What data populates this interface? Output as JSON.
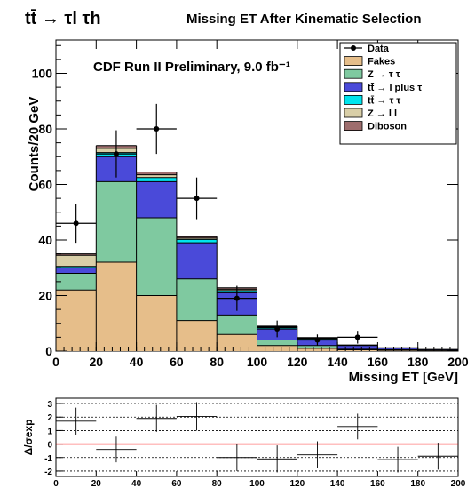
{
  "header": {
    "process": "tt̄ → τl τh",
    "title": "Missing ET After Kinematic Selection",
    "preliminary": "CDF Run II Preliminary, 9.0 fb⁻¹"
  },
  "chart_data": [
    {
      "type": "stacked_histogram",
      "xlabel": "Missing ET [GeV]",
      "ylabel": "Counts/20 GeV",
      "xlim": [
        0,
        200
      ],
      "ylim": [
        0,
        112
      ],
      "bin_width": 20,
      "x_ticks": [
        0,
        20,
        40,
        60,
        80,
        100,
        120,
        140,
        160,
        180,
        200
      ],
      "y_ticks": [
        0,
        20,
        40,
        60,
        80,
        100
      ],
      "bin_centers": [
        10,
        30,
        50,
        70,
        90,
        110,
        130,
        150,
        170,
        190
      ],
      "series": [
        {
          "name": "Fakes",
          "color": "#e6be8a",
          "values": [
            22,
            32,
            20,
            11,
            6,
            2,
            1,
            0.5,
            0.3,
            0.2
          ]
        },
        {
          "name": "Z → τ τ",
          "color": "#7fc9a0",
          "values": [
            6,
            29,
            28,
            15,
            7,
            2,
            1,
            0.2,
            0.2,
            0.1
          ]
        },
        {
          "name": "tt̄ → l plus τ",
          "color": "#4a4ad9",
          "values": [
            2,
            9,
            13,
            13,
            8,
            4,
            2.3,
            1.3,
            0.6,
            0.3
          ]
        },
        {
          "name": "tt̄ → τ τ",
          "color": "#00e5ee",
          "values": [
            0.5,
            1.5,
            1.5,
            1.2,
            0.8,
            0.5,
            0.3,
            0.2,
            0.1,
            0
          ]
        },
        {
          "name": "Z → l l",
          "color": "#d9cfa8",
          "values": [
            4,
            1.5,
            1,
            0.5,
            0.5,
            0.3,
            0.2,
            0,
            0,
            0
          ]
        },
        {
          "name": "Diboson",
          "color": "#9e6e6e",
          "values": [
            0.5,
            1,
            1,
            0.5,
            0.5,
            0.2,
            0.1,
            0,
            0,
            0
          ]
        }
      ],
      "data": {
        "name": "Data",
        "x": [
          10,
          30,
          50,
          70,
          90,
          110,
          130,
          150
        ],
        "y": [
          46,
          71,
          80,
          55,
          19,
          8,
          4,
          5
        ],
        "yerr": [
          7,
          8.5,
          9,
          7.5,
          4.5,
          3,
          2,
          2.3
        ]
      },
      "legend_position": "top-right"
    },
    {
      "type": "residual",
      "ylabel": "Δ/σexp",
      "xlim": [
        0,
        200
      ],
      "ylim": [
        -2.4,
        3.4
      ],
      "x_ticks": [
        0,
        20,
        40,
        60,
        80,
        100,
        120,
        140,
        160,
        180,
        200
      ],
      "y_ticks": [
        -2,
        -1,
        0,
        1,
        2,
        3
      ],
      "reference_line": 0,
      "reference_color": "#ff0000",
      "points": {
        "x": [
          10,
          30,
          50,
          70,
          90,
          110,
          130,
          150,
          170,
          190
        ],
        "y": [
          1.7,
          -0.4,
          1.9,
          2.05,
          -1.0,
          -1.1,
          -0.8,
          1.3,
          -1.15,
          -0.9
        ],
        "yerr": [
          1.0,
          0.95,
          1.0,
          1.05,
          1.0,
          1.0,
          1.0,
          0.95,
          0.95,
          1.0
        ]
      }
    }
  ]
}
